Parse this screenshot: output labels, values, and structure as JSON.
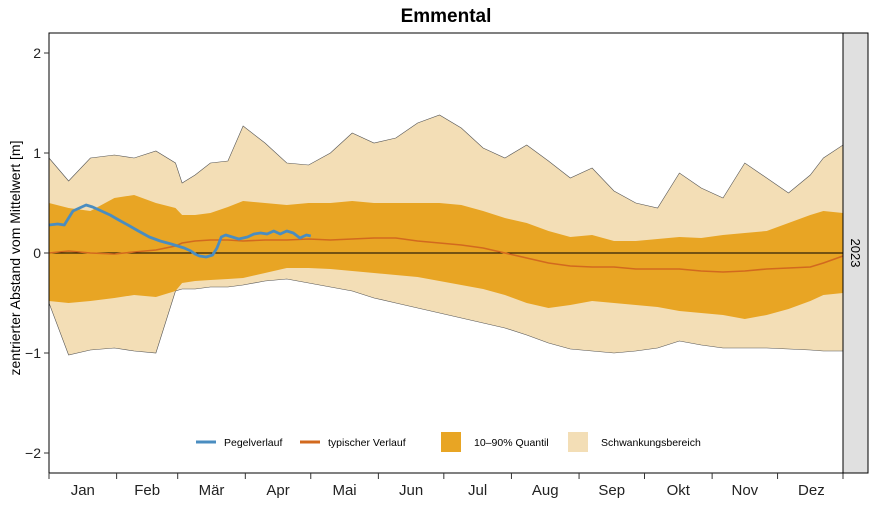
{
  "chart_data": {
    "type": "area",
    "title": "Emmental",
    "ylabel": "zentrierter Abstand vom Mittelwert [m]",
    "xlabel": "",
    "ylim": [
      -2.2,
      2.2
    ],
    "yticks": [
      -2,
      -1,
      0,
      1,
      2
    ],
    "ytick_labels": [
      "−2",
      "−1",
      "0",
      "1",
      "2"
    ],
    "months": [
      "Jan",
      "Feb",
      "Mär",
      "Apr",
      "Mai",
      "Jun",
      "Jul",
      "Aug",
      "Sep",
      "Okt",
      "Nov",
      "Dez"
    ],
    "panel_label": "2023",
    "zero_line": true,
    "grid": false,
    "legend_position": "bottom-inside",
    "colors": {
      "pegelverlauf": "#4a8dc0",
      "typischer_verlauf": "#d2691e",
      "quantil": "#e8a524",
      "schwankung": "#f3deb6",
      "strip_bg": "#e0e0e0"
    },
    "legend": [
      {
        "label": "Pegelverlauf",
        "kind": "line",
        "color_key": "pegelverlauf"
      },
      {
        "label": "typischer Verlauf",
        "kind": "line",
        "color_key": "typischer_verlauf"
      },
      {
        "label": "10–90% Quantil",
        "kind": "box",
        "color_key": "quantil"
      },
      {
        "label": "Schwankungsbereich",
        "kind": "box",
        "color_key": "schwankung"
      }
    ],
    "x_days": [
      1,
      10,
      20,
      31,
      40,
      50,
      59,
      62,
      68,
      75,
      83,
      90,
      100,
      110,
      120,
      130,
      140,
      150,
      160,
      170,
      180,
      190,
      200,
      210,
      220,
      230,
      240,
      250,
      260,
      270,
      280,
      290,
      300,
      310,
      320,
      330,
      340,
      350,
      356,
      365
    ],
    "schwankung_upper": [
      0.95,
      0.72,
      0.95,
      0.98,
      0.95,
      1.02,
      0.9,
      0.7,
      0.78,
      0.9,
      0.92,
      1.27,
      1.1,
      0.9,
      0.88,
      1.0,
      1.2,
      1.1,
      1.15,
      1.3,
      1.38,
      1.25,
      1.05,
      0.95,
      1.08,
      0.92,
      0.75,
      0.85,
      0.62,
      0.5,
      0.45,
      0.8,
      0.65,
      0.55,
      0.9,
      0.75,
      0.6,
      0.78,
      0.95,
      1.08
    ],
    "schwankung_lower": [
      -0.5,
      -1.02,
      -0.97,
      -0.95,
      -0.98,
      -1.0,
      -0.38,
      -0.36,
      -0.36,
      -0.34,
      -0.34,
      -0.32,
      -0.28,
      -0.26,
      -0.3,
      -0.34,
      -0.38,
      -0.45,
      -0.5,
      -0.55,
      -0.6,
      -0.65,
      -0.7,
      -0.75,
      -0.82,
      -0.9,
      -0.96,
      -0.98,
      -1.0,
      -0.98,
      -0.95,
      -0.88,
      -0.92,
      -0.95,
      -0.95,
      -0.95,
      -0.96,
      -0.97,
      -0.98,
      -0.98
    ],
    "quantil_upper": [
      0.5,
      0.45,
      0.42,
      0.55,
      0.58,
      0.5,
      0.45,
      0.38,
      0.38,
      0.4,
      0.46,
      0.52,
      0.5,
      0.48,
      0.5,
      0.5,
      0.52,
      0.5,
      0.5,
      0.5,
      0.5,
      0.48,
      0.42,
      0.35,
      0.3,
      0.22,
      0.16,
      0.18,
      0.12,
      0.12,
      0.14,
      0.16,
      0.15,
      0.18,
      0.2,
      0.22,
      0.3,
      0.38,
      0.42,
      0.4
    ],
    "quantil_lower": [
      -0.48,
      -0.5,
      -0.48,
      -0.45,
      -0.42,
      -0.44,
      -0.38,
      -0.3,
      -0.28,
      -0.27,
      -0.26,
      -0.25,
      -0.2,
      -0.15,
      -0.15,
      -0.16,
      -0.18,
      -0.2,
      -0.22,
      -0.24,
      -0.28,
      -0.32,
      -0.36,
      -0.42,
      -0.5,
      -0.55,
      -0.52,
      -0.48,
      -0.5,
      -0.52,
      -0.54,
      -0.58,
      -0.6,
      -0.62,
      -0.66,
      -0.62,
      -0.56,
      -0.48,
      -0.42,
      -0.4
    ],
    "typischer_verlauf": [
      0.0,
      0.02,
      0.0,
      -0.01,
      0.01,
      0.03,
      0.07,
      0.1,
      0.12,
      0.13,
      0.13,
      0.12,
      0.13,
      0.13,
      0.14,
      0.13,
      0.14,
      0.15,
      0.15,
      0.12,
      0.1,
      0.08,
      0.05,
      0.0,
      -0.05,
      -0.1,
      -0.13,
      -0.14,
      -0.14,
      -0.16,
      -0.16,
      -0.16,
      -0.18,
      -0.19,
      -0.18,
      -0.16,
      -0.15,
      -0.14,
      -0.1,
      -0.03
    ],
    "pegel_days": [
      1,
      5,
      8,
      10,
      12,
      15,
      18,
      21,
      25,
      29,
      33,
      38,
      42,
      47,
      52,
      57,
      60,
      63,
      66,
      68,
      70,
      73,
      76,
      78,
      80,
      82,
      85,
      88,
      92,
      95,
      98,
      101,
      104,
      107,
      110,
      113,
      116,
      119,
      121
    ],
    "pegelverlauf": [
      0.28,
      0.29,
      0.28,
      0.35,
      0.42,
      0.45,
      0.48,
      0.46,
      0.42,
      0.38,
      0.33,
      0.27,
      0.22,
      0.16,
      0.12,
      0.09,
      0.07,
      0.05,
      0.02,
      -0.01,
      -0.03,
      -0.04,
      -0.02,
      0.05,
      0.16,
      0.18,
      0.16,
      0.14,
      0.16,
      0.19,
      0.2,
      0.19,
      0.22,
      0.19,
      0.22,
      0.2,
      0.15,
      0.18,
      0.17
    ]
  }
}
